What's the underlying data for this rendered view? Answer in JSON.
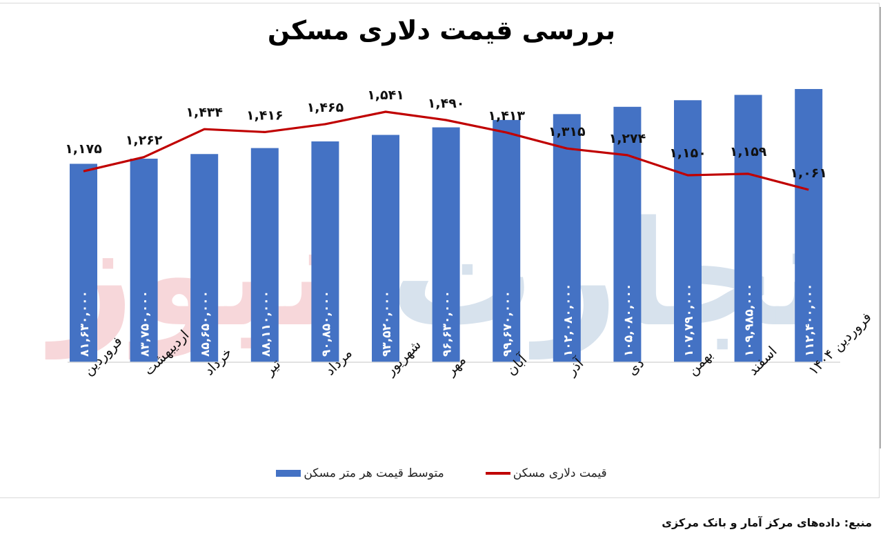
{
  "title": "بررسی قیمت دلاری مسکن",
  "source": "منبع: داده‌های مرکز آمار و بانک مرکزی",
  "watermark": "تجارت نیوز",
  "colors": {
    "bar": "#4472c4",
    "line": "#c00000",
    "watermark_red": "#f2b8bd",
    "watermark_blue": "#b7cbe0"
  },
  "legend": {
    "bar_label": "متوسط قیمت هر متر مسکن",
    "line_label": "قیمت دلاری مسکن"
  },
  "chart_data": {
    "type": "bar+line",
    "title": "بررسی قیمت دلاری مسکن",
    "xlabel": "",
    "ylabel": "",
    "grid": false,
    "legend_position": "bottom",
    "categories": [
      "فروردین",
      "اردیبهشت",
      "خرداد",
      "تیر",
      "مرداد",
      "شهریور",
      "مهر",
      "آبان",
      "آذر",
      "دی",
      "بهمن",
      "اسفند",
      "فروردین ۱۴۰۴"
    ],
    "series": [
      {
        "name": "متوسط قیمت هر متر مسکن",
        "type": "bar",
        "values": [
          81630000,
          83750000,
          85650000,
          88110000,
          90850000,
          93520000,
          96630000,
          99670000,
          102080000,
          105080000,
          107790000,
          109985000,
          112400000
        ],
        "labels": [
          "۸۱,۶۳۰,۰۰۰",
          "۸۳,۷۵۰,۰۰۰",
          "۸۵,۶۵۰,۰۰۰",
          "۸۸,۱۱۰,۰۰۰",
          "۹۰,۸۵۰,۰۰۰",
          "۹۳,۵۲۰,۰۰۰",
          "۹۶,۶۳۰,۰۰۰",
          "۹۹,۶۷۰,۰۰۰",
          "۱۰۲,۰۸۰,۰۰۰",
          "۱۰۵,۰۸۰,۰۰۰",
          "۱۰۷,۷۹۰,۰۰۰",
          "۱۰۹,۹۸۵,۰۰۰",
          "۱۱۲,۴۰۰,۰۰۰"
        ]
      },
      {
        "name": "قیمت دلاری مسکن",
        "type": "line",
        "values": [
          1175,
          1262,
          1434,
          1416,
          1465,
          1541,
          1490,
          1413,
          1315,
          1274,
          1150,
          1159,
          1061
        ],
        "labels": [
          "۱,۱۷۵",
          "۱,۲۶۲",
          "۱,۴۳۴",
          "۱,۴۱۶",
          "۱,۴۶۵",
          "۱,۵۴۱",
          "۱,۴۹۰",
          "۱,۴۱۳",
          "۱,۳۱۵",
          "۱,۲۷۴",
          "۱,۱۵۰",
          "۱,۱۵۹",
          "۱,۰۶۱"
        ]
      }
    ]
  }
}
